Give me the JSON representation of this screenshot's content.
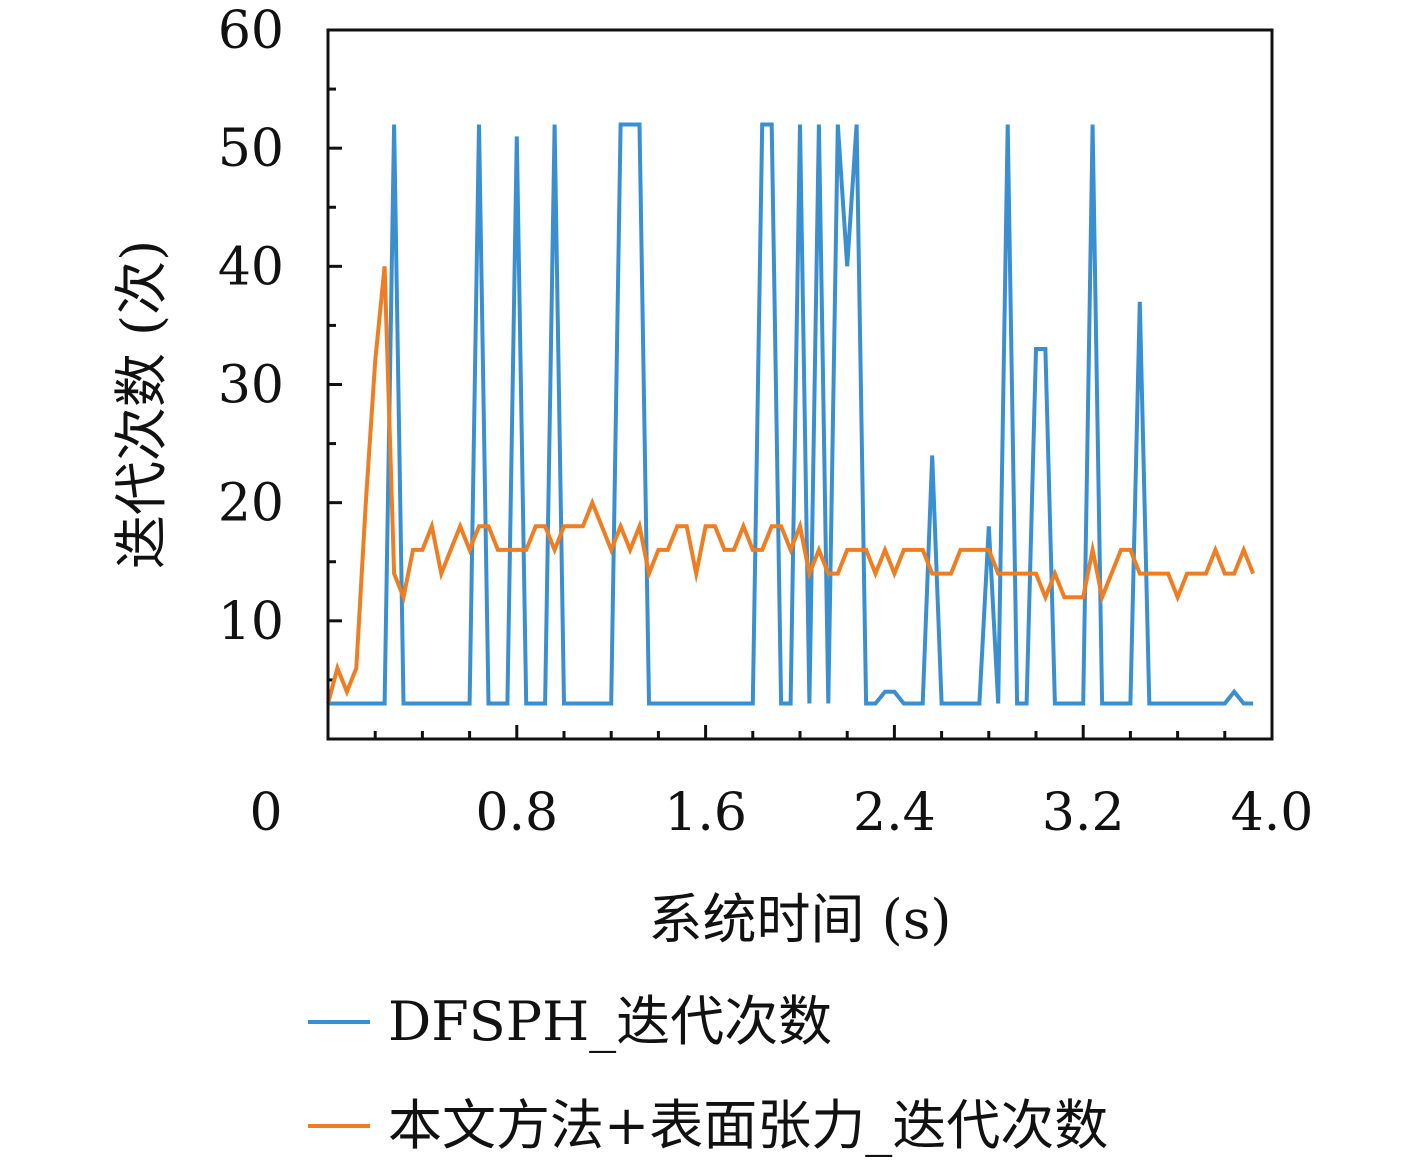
{
  "chart_data": {
    "type": "line",
    "title": "",
    "xlabel": "系统时间 (s)",
    "ylabel": "迭代次数 (次)",
    "xlim": [
      0,
      4.0
    ],
    "ylim": [
      0,
      60
    ],
    "x_ticks": [
      "0",
      "0.8",
      "1.6",
      "2.4",
      "3.2",
      "4.0"
    ],
    "x_tick_values": [
      0,
      0.8,
      1.6,
      2.4,
      3.2,
      4.0
    ],
    "y_ticks": [
      "10",
      "20",
      "30",
      "40",
      "50",
      "60"
    ],
    "y_tick_values": [
      10,
      20,
      30,
      40,
      50,
      60
    ],
    "grid": false,
    "legend_position": "bottom",
    "series": [
      {
        "name": "DFSPH_迭代次数",
        "color": "#3a8fd0",
        "x": [
          0.0,
          0.24,
          0.28,
          0.32,
          0.6,
          0.64,
          0.68,
          0.76,
          0.8,
          0.84,
          0.92,
          0.96,
          1.0,
          1.2,
          1.24,
          1.32,
          1.36,
          1.8,
          1.84,
          1.88,
          1.92,
          1.96,
          2.0,
          2.04,
          2.08,
          2.12,
          2.16,
          2.2,
          2.24,
          2.28,
          2.32,
          2.36,
          2.4,
          2.44,
          2.48,
          2.52,
          2.56,
          2.6,
          2.64,
          2.68,
          2.76,
          2.8,
          2.84,
          2.88,
          2.92,
          2.96,
          3.0,
          3.04,
          3.08,
          3.12,
          3.2,
          3.24,
          3.28,
          3.36,
          3.4,
          3.44,
          3.48,
          3.6,
          3.68,
          3.8,
          3.84,
          3.88,
          3.92
        ],
        "values": [
          3,
          3,
          52,
          3,
          3,
          52,
          3,
          3,
          51,
          3,
          3,
          52,
          3,
          3,
          52,
          52,
          3,
          3,
          52,
          52,
          3,
          3,
          52,
          3,
          52,
          3,
          52,
          40,
          52,
          3,
          3,
          4,
          4,
          3,
          3,
          3,
          24,
          3,
          3,
          3,
          3,
          18,
          3,
          52,
          3,
          3,
          33,
          33,
          3,
          3,
          3,
          52,
          3,
          3,
          3,
          37,
          3,
          3,
          3,
          3,
          4,
          3,
          3
        ]
      },
      {
        "name": "本文方法+表面张力_迭代次数",
        "color": "#ef7d21",
        "x": [
          0.0,
          0.04,
          0.08,
          0.12,
          0.16,
          0.2,
          0.24,
          0.28,
          0.32,
          0.36,
          0.4,
          0.44,
          0.48,
          0.52,
          0.56,
          0.6,
          0.64,
          0.68,
          0.72,
          0.76,
          0.8,
          0.84,
          0.88,
          0.92,
          0.96,
          1.0,
          1.04,
          1.08,
          1.12,
          1.16,
          1.2,
          1.24,
          1.28,
          1.32,
          1.36,
          1.4,
          1.44,
          1.48,
          1.52,
          1.56,
          1.6,
          1.64,
          1.68,
          1.72,
          1.76,
          1.8,
          1.84,
          1.88,
          1.92,
          1.96,
          2.0,
          2.04,
          2.08,
          2.12,
          2.16,
          2.2,
          2.24,
          2.28,
          2.32,
          2.36,
          2.4,
          2.44,
          2.48,
          2.52,
          2.56,
          2.6,
          2.64,
          2.68,
          2.72,
          2.76,
          2.8,
          2.84,
          2.88,
          2.92,
          2.96,
          3.0,
          3.04,
          3.08,
          3.12,
          3.16,
          3.2,
          3.24,
          3.28,
          3.32,
          3.36,
          3.4,
          3.44,
          3.48,
          3.52,
          3.56,
          3.6,
          3.64,
          3.68,
          3.72,
          3.76,
          3.8,
          3.84,
          3.88,
          3.92
        ],
        "values": [
          3,
          6,
          4,
          6,
          20,
          32,
          40,
          14,
          12,
          16,
          16,
          18,
          14,
          16,
          18,
          16,
          18,
          18,
          16,
          16,
          16,
          16,
          18,
          18,
          16,
          18,
          18,
          18,
          20,
          18,
          16,
          18,
          16,
          18,
          14,
          16,
          16,
          18,
          18,
          14,
          18,
          18,
          16,
          16,
          18,
          16,
          16,
          18,
          18,
          16,
          18,
          14,
          16,
          14,
          14,
          16,
          16,
          16,
          14,
          16,
          14,
          16,
          16,
          16,
          14,
          14,
          14,
          16,
          16,
          16,
          16,
          14,
          14,
          14,
          14,
          14,
          12,
          14,
          12,
          12,
          12,
          16,
          12,
          14,
          16,
          16,
          14,
          14,
          14,
          14,
          12,
          14,
          14,
          14,
          16,
          14,
          14,
          16,
          14
        ]
      }
    ]
  }
}
